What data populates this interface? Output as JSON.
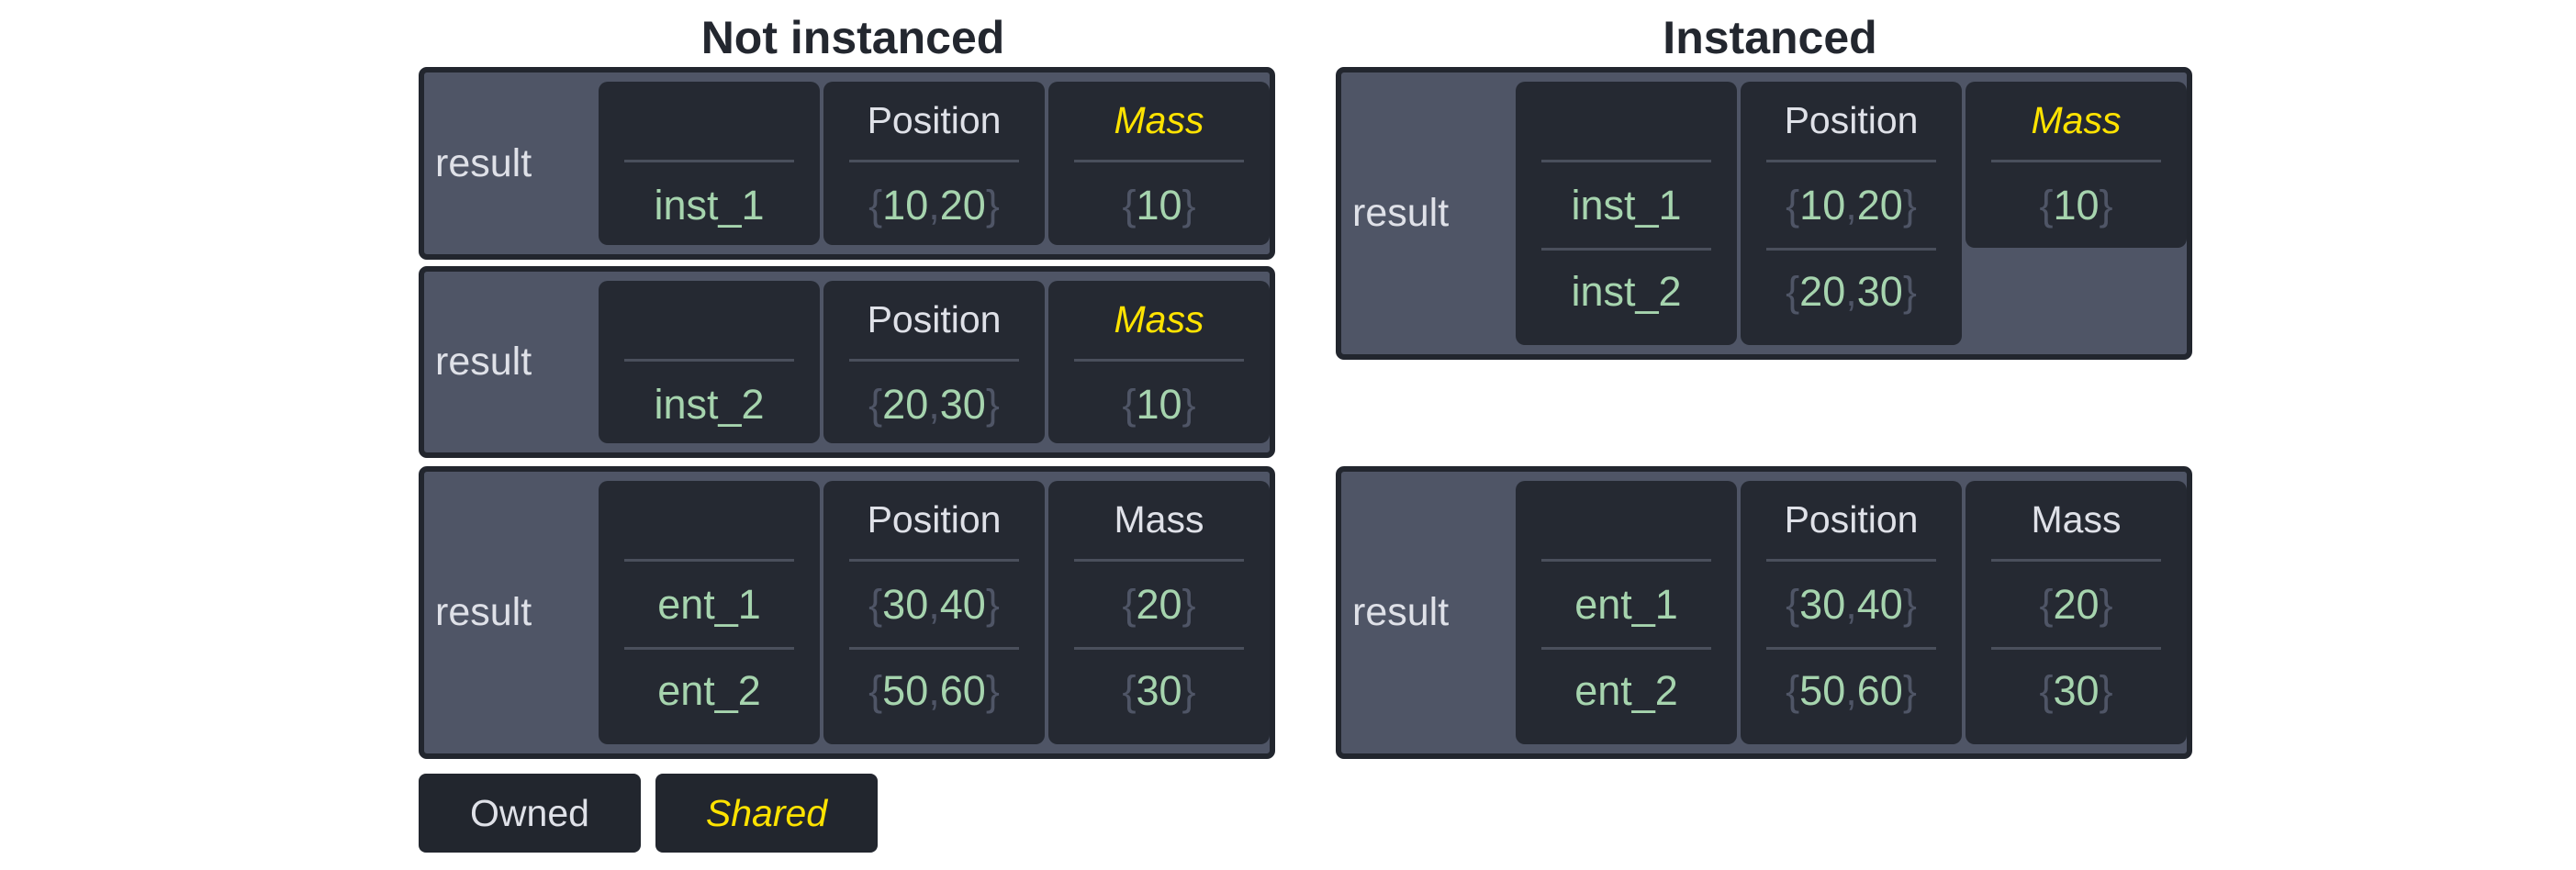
{
  "titles": {
    "left": "Not instanced",
    "right": "Instanced"
  },
  "colors": {
    "owned_text": "#dfe1e8",
    "shared_text": "#ffe300",
    "value_text": "#a6d4ae",
    "panel_bg": "#4f5566",
    "cell_bg": "#252932"
  },
  "left_panels": [
    {
      "label": "result",
      "columns": [
        {
          "header": "",
          "shared": false,
          "values": [
            [
              "inst_1"
            ]
          ],
          "plain": true
        },
        {
          "header": "Position",
          "shared": false,
          "values": [
            [
              "10",
              "20"
            ]
          ]
        },
        {
          "header": "Mass",
          "shared": true,
          "values": [
            [
              "10"
            ]
          ]
        }
      ]
    },
    {
      "label": "result",
      "columns": [
        {
          "header": "",
          "shared": false,
          "values": [
            [
              "inst_2"
            ]
          ],
          "plain": true
        },
        {
          "header": "Position",
          "shared": false,
          "values": [
            [
              "20",
              "30"
            ]
          ]
        },
        {
          "header": "Mass",
          "shared": true,
          "values": [
            [
              "10"
            ]
          ]
        }
      ]
    },
    {
      "label": "result",
      "columns": [
        {
          "header": "",
          "shared": false,
          "values": [
            [
              "ent_1"
            ],
            [
              "ent_2"
            ]
          ],
          "plain": true
        },
        {
          "header": "Position",
          "shared": false,
          "values": [
            [
              "30",
              "40"
            ],
            [
              "50",
              "60"
            ]
          ]
        },
        {
          "header": "Mass",
          "shared": false,
          "values": [
            [
              "20"
            ],
            [
              "30"
            ]
          ]
        }
      ]
    }
  ],
  "right_panels": [
    {
      "label": "result",
      "columns": [
        {
          "header": "",
          "shared": false,
          "values": [
            [
              "inst_1"
            ],
            [
              "inst_2"
            ]
          ],
          "plain": true
        },
        {
          "header": "Position",
          "shared": false,
          "values": [
            [
              "10",
              "20"
            ],
            [
              "20",
              "30"
            ]
          ]
        },
        {
          "header": "Mass",
          "shared": true,
          "values": [
            [
              "10"
            ]
          ]
        }
      ]
    },
    {
      "label": "result",
      "columns": [
        {
          "header": "",
          "shared": false,
          "values": [
            [
              "ent_1"
            ],
            [
              "ent_2"
            ]
          ],
          "plain": true
        },
        {
          "header": "Position",
          "shared": false,
          "values": [
            [
              "30",
              "40"
            ],
            [
              "50",
              "60"
            ]
          ]
        },
        {
          "header": "Mass",
          "shared": false,
          "values": [
            [
              "20"
            ],
            [
              "30"
            ]
          ]
        }
      ]
    }
  ],
  "legend": {
    "owned": "Owned",
    "shared": "Shared"
  }
}
